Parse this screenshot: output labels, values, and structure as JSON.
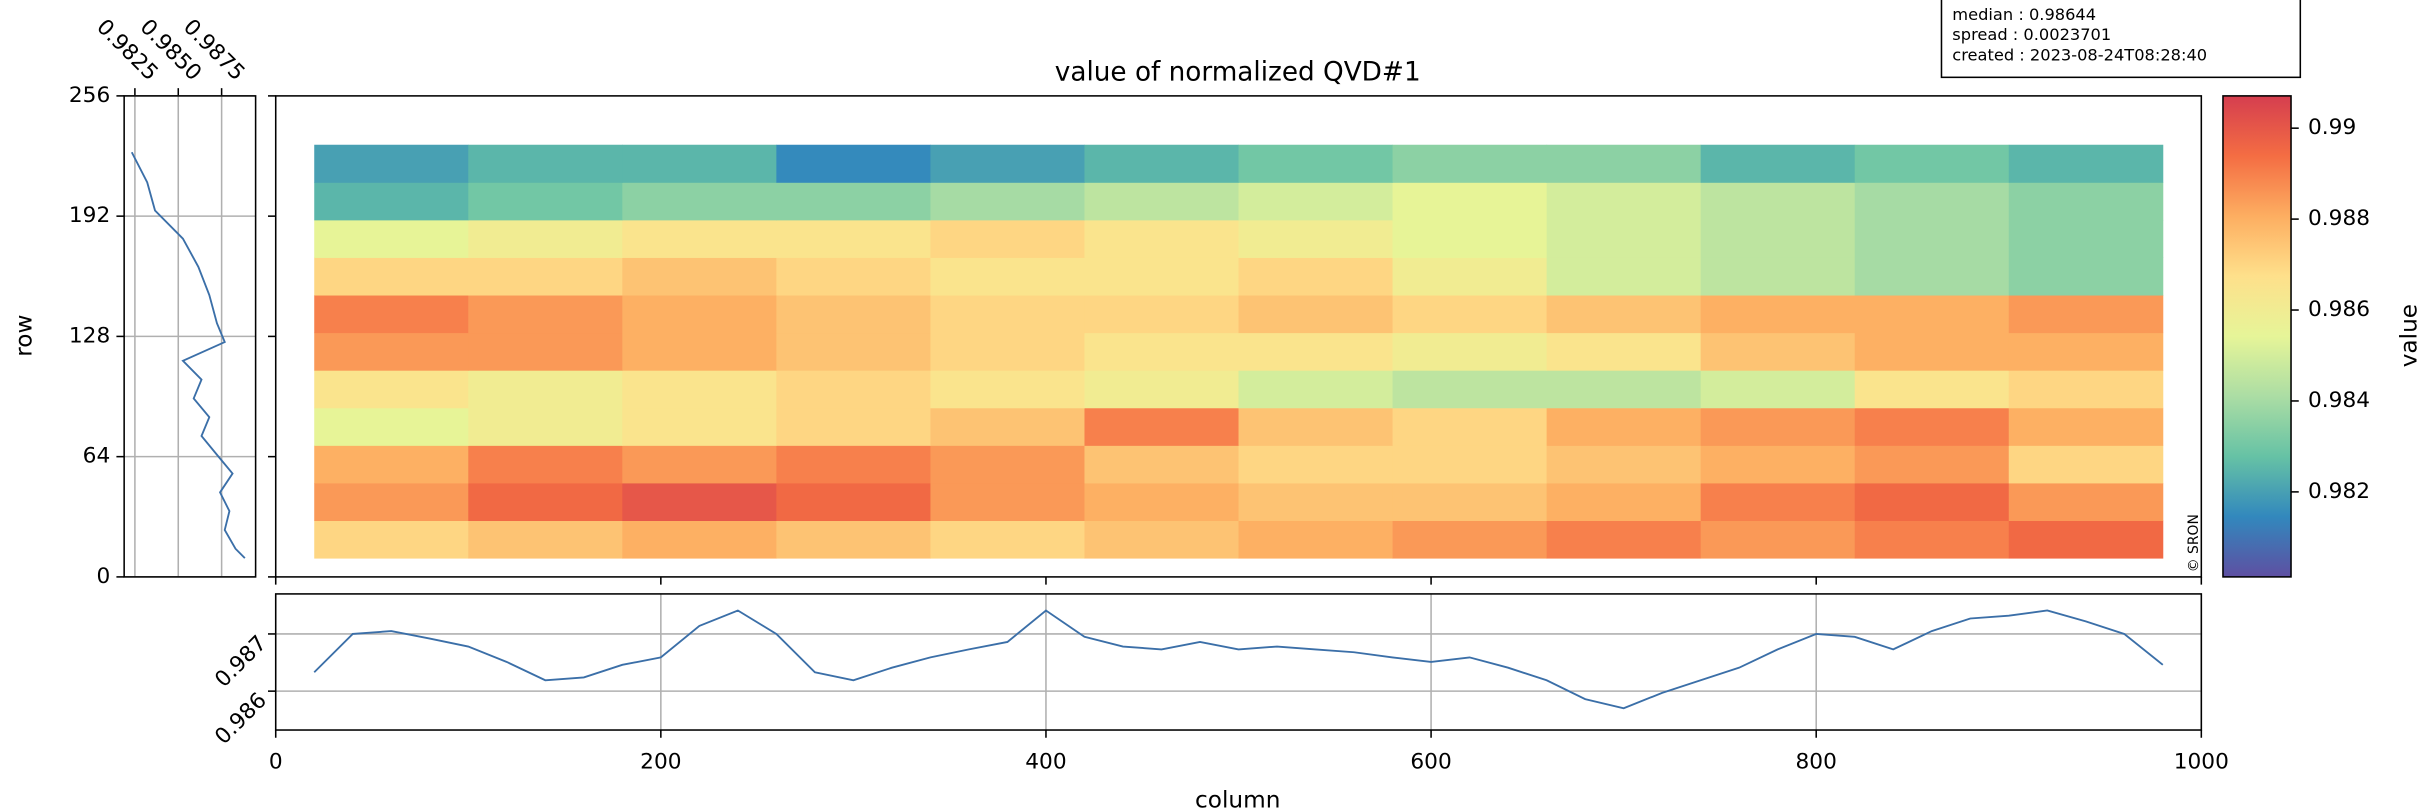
{
  "info": [
    "median : 0.98644",
    "spread : 0.0023701",
    "created : 2023-08-24T08:28:40"
  ],
  "chart_data": [
    {
      "type": "heatmap",
      "title": "value of normalized QVD#1",
      "colorbar_label": "value",
      "annotation": "© SRON",
      "xlim": [
        0,
        1000
      ],
      "ylim": [
        0,
        256
      ],
      "x_bins": [
        20,
        100,
        180,
        260,
        340,
        420,
        500,
        580,
        660,
        740,
        820,
        900,
        980
      ],
      "y_bins": [
        10,
        30,
        50,
        70,
        90,
        110,
        130,
        150,
        170,
        190,
        210,
        230
      ],
      "z": [
        [
          0.987,
          0.9875,
          0.988,
          0.9875,
          0.987,
          0.9875,
          0.988,
          0.9885,
          0.989,
          0.9885,
          0.989,
          0.9895
        ],
        [
          0.9885,
          0.9895,
          0.99,
          0.9895,
          0.9885,
          0.988,
          0.9875,
          0.9875,
          0.988,
          0.989,
          0.9895,
          0.9885
        ],
        [
          0.988,
          0.989,
          0.9885,
          0.989,
          0.9885,
          0.9875,
          0.987,
          0.987,
          0.9875,
          0.988,
          0.9885,
          0.987
        ],
        [
          0.9855,
          0.986,
          0.9865,
          0.987,
          0.9875,
          0.989,
          0.9875,
          0.987,
          0.988,
          0.9885,
          0.989,
          0.988
        ],
        [
          0.9865,
          0.986,
          0.9865,
          0.987,
          0.9865,
          0.986,
          0.985,
          0.9845,
          0.9845,
          0.985,
          0.9865,
          0.987
        ],
        [
          0.9885,
          0.9885,
          0.988,
          0.9875,
          0.987,
          0.9865,
          0.9865,
          0.986,
          0.9865,
          0.9875,
          0.988,
          0.988
        ],
        [
          0.989,
          0.9885,
          0.988,
          0.9875,
          0.987,
          0.987,
          0.9875,
          0.987,
          0.9875,
          0.988,
          0.988,
          0.9885
        ],
        [
          0.987,
          0.987,
          0.9875,
          0.987,
          0.9865,
          0.9865,
          0.987,
          0.986,
          0.985,
          0.9845,
          0.984,
          0.9835
        ],
        [
          0.9855,
          0.986,
          0.9865,
          0.9865,
          0.987,
          0.9865,
          0.986,
          0.9855,
          0.985,
          0.9845,
          0.984,
          0.9835
        ],
        [
          0.9825,
          0.983,
          0.9835,
          0.9835,
          0.984,
          0.9845,
          0.985,
          0.9855,
          0.985,
          0.9845,
          0.984,
          0.9835
        ],
        [
          0.982,
          0.9825,
          0.9825,
          0.9815,
          0.982,
          0.9825,
          0.983,
          0.9835,
          0.9835,
          0.9825,
          0.983,
          0.9825
        ]
      ],
      "clim": [
        0.98013,
        0.99071
      ],
      "cticks": [
        0.982,
        0.984,
        0.986,
        0.988,
        0.99
      ],
      "colormap": [
        "#5e4fa2",
        "#3288bd",
        "#66c2a5",
        "#abdda4",
        "#e6f598",
        "#fee08b",
        "#fdae61",
        "#f46d43",
        "#d53e4f"
      ]
    },
    {
      "type": "line",
      "ylabel": "row",
      "color": "#3b6fa8",
      "grid": true,
      "rows": [
        226,
        210,
        195,
        180,
        165,
        150,
        135,
        125,
        115,
        105,
        95,
        85,
        75,
        65,
        55,
        45,
        35,
        25,
        15,
        10
      ],
      "values": [
        0.98232,
        0.98321,
        0.98366,
        0.98527,
        0.98616,
        0.98679,
        0.98723,
        0.98768,
        0.98527,
        0.98634,
        0.98589,
        0.98679,
        0.98634,
        0.98723,
        0.98813,
        0.98741,
        0.98795,
        0.98768,
        0.9883,
        0.98884
      ],
      "xlim": [
        0.98188,
        0.98946
      ],
      "xticks": [
        0.9825,
        {
          "value": 0.985,
          "label": "0.9850"
        },
        0.9875
      ],
      "ylim": [
        0,
        256
      ],
      "yticks": [
        0,
        64,
        128,
        192,
        256
      ]
    },
    {
      "type": "line",
      "xlabel": "column",
      "color": "#3b6fa8",
      "grid": true,
      "x": [
        20,
        40,
        60,
        80,
        100,
        120,
        140,
        160,
        180,
        200,
        220,
        240,
        260,
        280,
        300,
        320,
        340,
        360,
        380,
        400,
        420,
        440,
        460,
        480,
        500,
        520,
        540,
        560,
        580,
        600,
        620,
        640,
        660,
        680,
        700,
        720,
        740,
        760,
        780,
        800,
        820,
        840,
        860,
        880,
        900,
        920,
        940,
        960,
        980
      ],
      "values": [
        0.98633,
        0.987,
        0.98705,
        0.98692,
        0.98678,
        0.98651,
        0.98619,
        0.98624,
        0.98646,
        0.98659,
        0.98714,
        0.98741,
        0.987,
        0.98633,
        0.98619,
        0.98641,
        0.98659,
        0.98673,
        0.98686,
        0.98741,
        0.98695,
        0.98678,
        0.98673,
        0.98686,
        0.98673,
        0.98678,
        0.98673,
        0.98668,
        0.98659,
        0.98651,
        0.98659,
        0.98641,
        0.98619,
        0.98586,
        0.9857,
        0.98597,
        0.98619,
        0.98641,
        0.98673,
        0.987,
        0.98695,
        0.98673,
        0.98705,
        0.98727,
        0.98732,
        0.98741,
        0.98722,
        0.987,
        0.98646
      ],
      "xlim": [
        0,
        1000
      ],
      "xticks": [
        0,
        200,
        400,
        600,
        800,
        1000
      ],
      "ylim": [
        0.98532,
        0.9877
      ],
      "yticks": [
        0.986,
        0.987
      ]
    }
  ]
}
